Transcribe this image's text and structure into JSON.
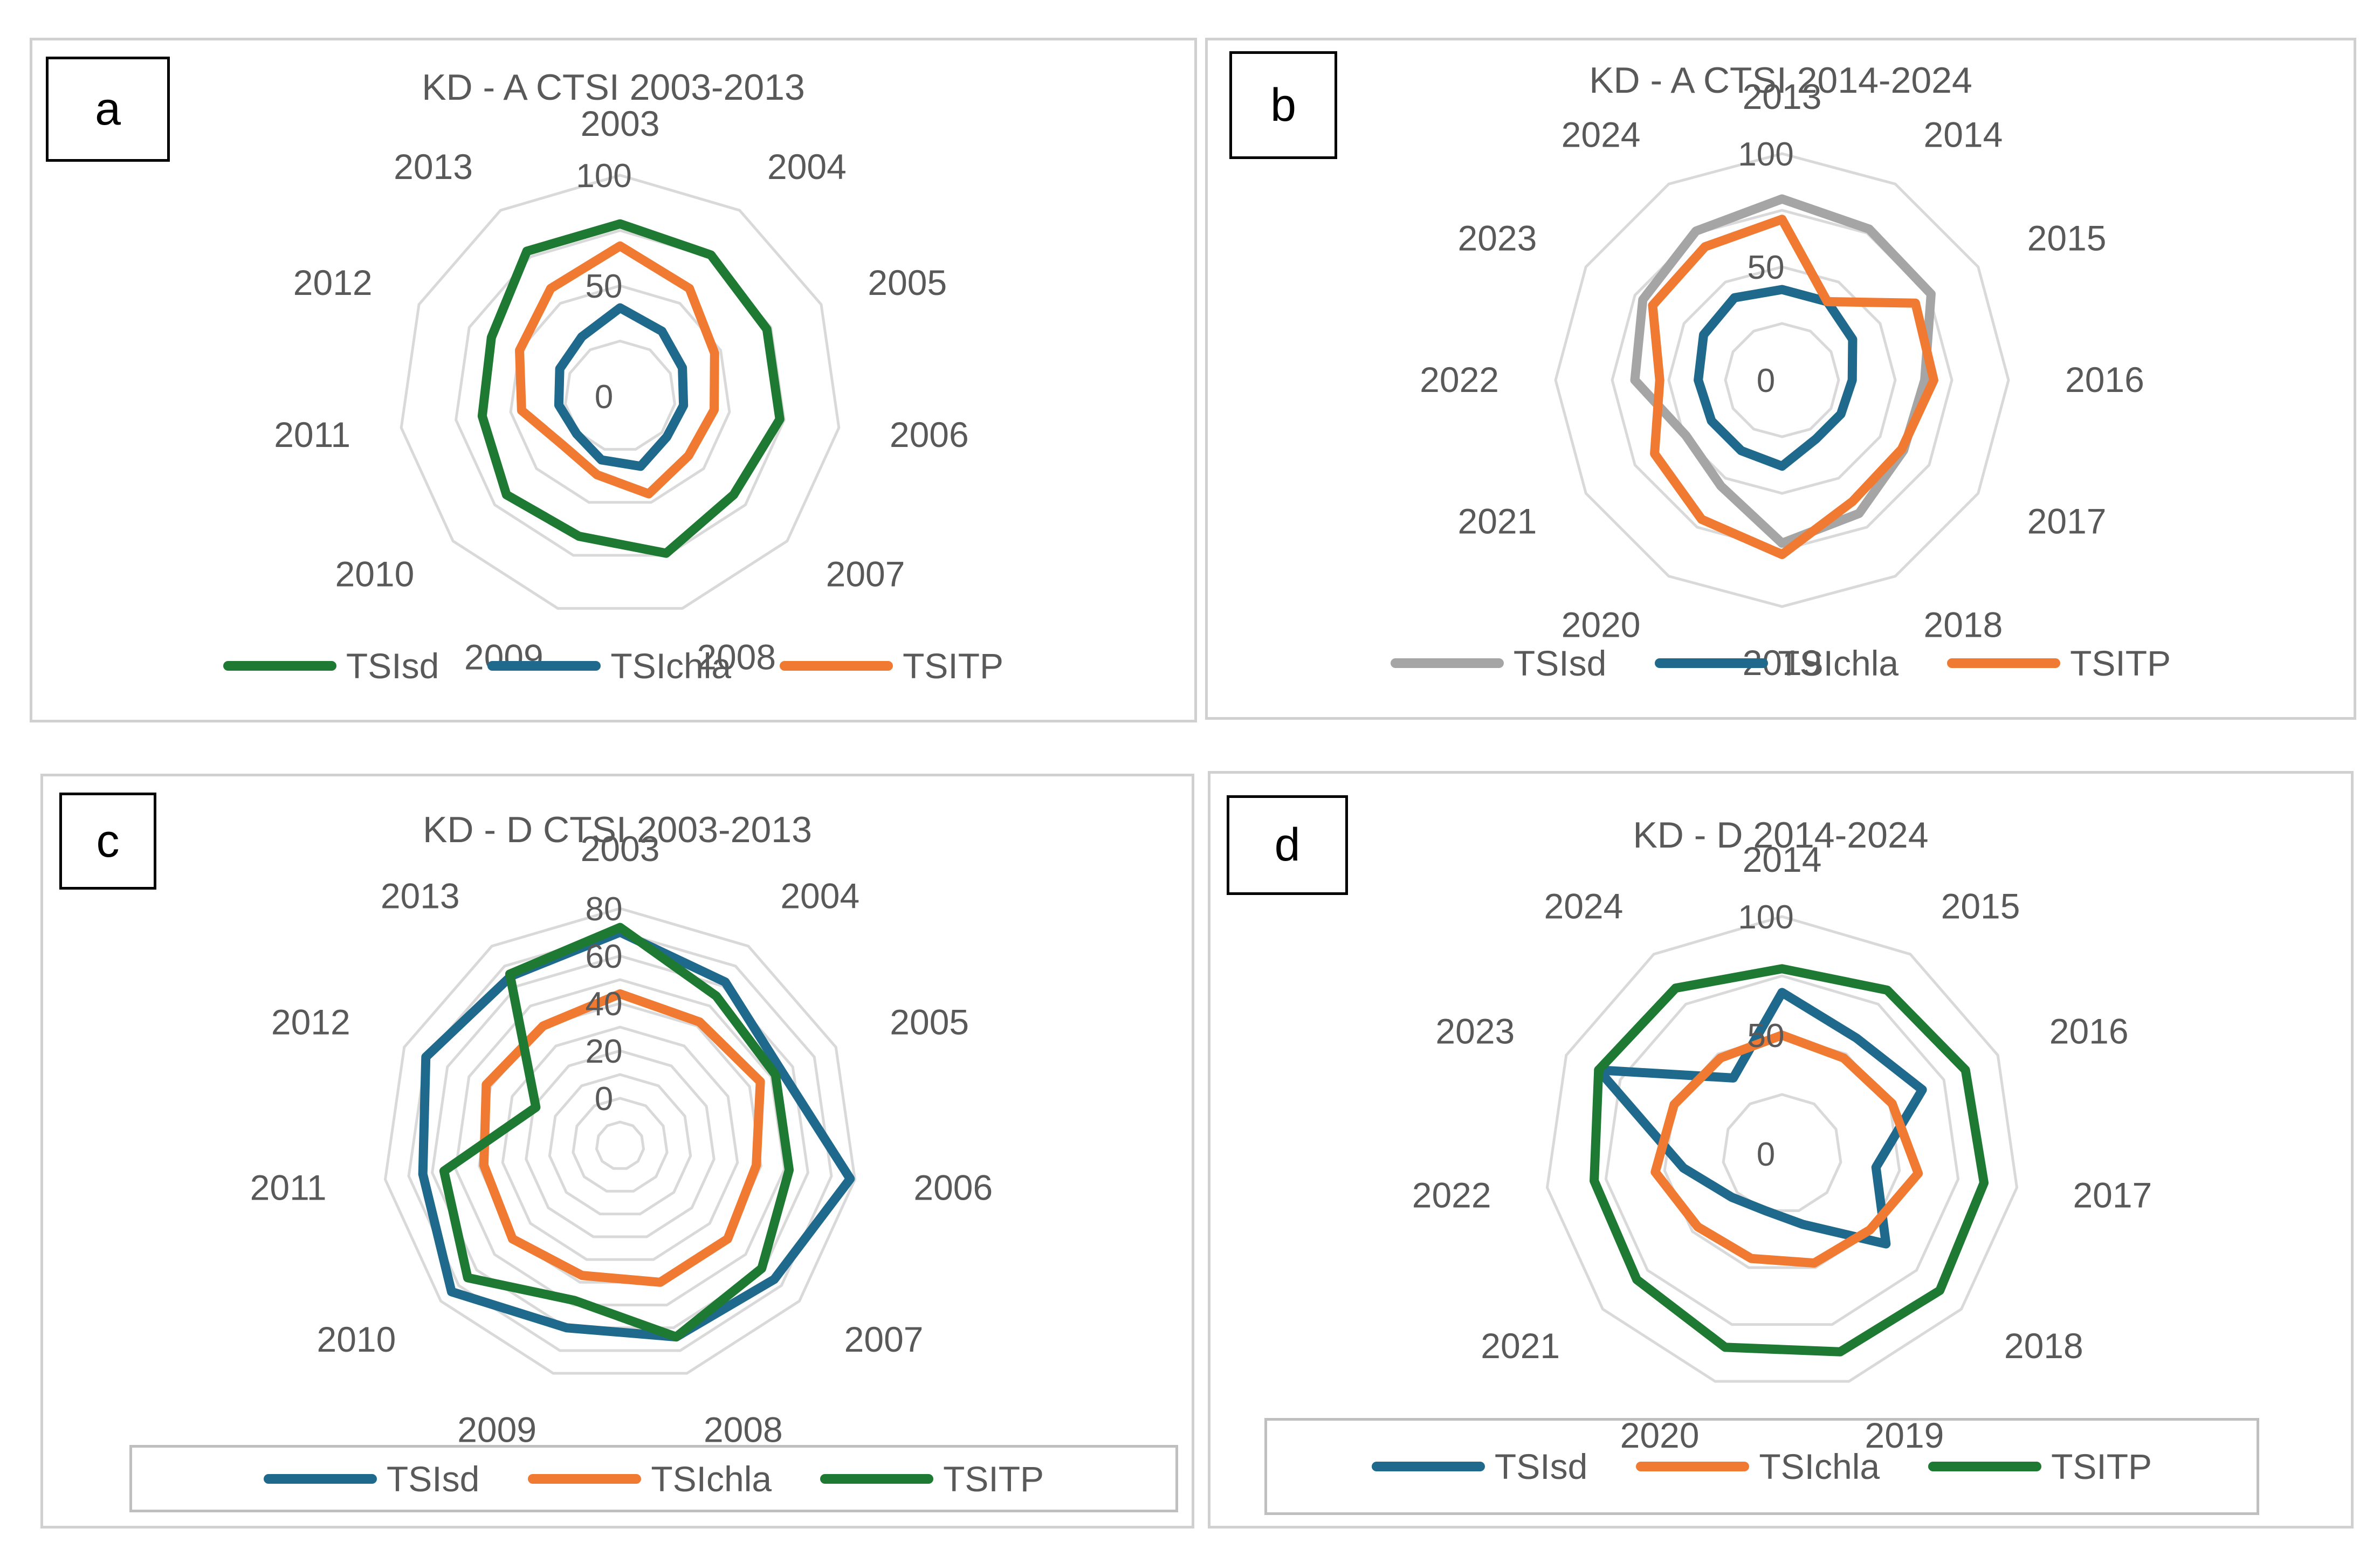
{
  "chart_data": [
    {
      "type": "radar",
      "letter": "a",
      "title": "KD - A CTSI 2003-2013",
      "categories": [
        "2003",
        "2004",
        "2005",
        "2006",
        "2007",
        "2008",
        "2009",
        "2010",
        "2011",
        "2012",
        "2013"
      ],
      "rmax": 100,
      "ticks": [
        "0",
        "50",
        "100"
      ],
      "tick_values": [
        0,
        50,
        100
      ],
      "series": [
        {
          "name": "TSIsd",
          "color": "#1e7a32",
          "values": [
            78,
            76,
            73,
            73,
            68,
            74,
            66,
            68,
            63,
            64,
            78
          ]
        },
        {
          "name": "TSIchla",
          "color": "#1f6a8c",
          "values": [
            40,
            35,
            31,
            29,
            28,
            33,
            30,
            26,
            28,
            30,
            32
          ]
        },
        {
          "name": "TSITP",
          "color": "#f07a32",
          "values": [
            68,
            58,
            47,
            43,
            41,
            46,
            37,
            34,
            45,
            50,
            58
          ]
        }
      ]
    },
    {
      "type": "radar",
      "letter": "b",
      "title": "KD - A CTSI 2014-2024",
      "categories": [
        "2013",
        "2014",
        "2015",
        "2016",
        "2017",
        "2018",
        "2019",
        "2020",
        "2021",
        "2022",
        "2023",
        "2024"
      ],
      "rmax": 100,
      "ticks": [
        "0",
        "50",
        "100"
      ],
      "tick_values": [
        0,
        50,
        100
      ],
      "series": [
        {
          "name": "TSIsd",
          "color": "#a5a5a5",
          "values": [
            80,
            77,
            76,
            63,
            62,
            68,
            72,
            54,
            49,
            65,
            71,
            76
          ]
        },
        {
          "name": "TSIchla",
          "color": "#1f6a8c",
          "values": [
            40,
            40,
            36,
            31,
            30,
            30,
            38,
            36,
            36,
            37,
            40,
            42
          ]
        },
        {
          "name": "TSITP",
          "color": "#f07a32",
          "values": [
            71,
            40,
            68,
            67,
            61,
            62,
            77,
            71,
            65,
            54,
            66,
            68
          ]
        }
      ]
    },
    {
      "type": "radar",
      "letter": "c",
      "title": "KD - D CTSI 2003-2013",
      "categories": [
        "2003",
        "2004",
        "2005",
        "2006",
        "2007",
        "2008",
        "2009",
        "2010",
        "2011",
        "2012",
        "2013"
      ],
      "rmin": -20,
      "rmax": 80,
      "ticks": [
        "0",
        "20",
        "40",
        "60",
        "80"
      ],
      "tick_values": [
        0,
        20,
        40,
        60,
        80
      ],
      "series": [
        {
          "name": "TSIsd",
          "color": "#1f6a8c",
          "values": [
            70,
            62,
            55,
            78,
            66,
            64,
            60,
            74,
            64,
            70,
            65
          ]
        },
        {
          "name": "TSIchla",
          "color": "#f07a32",
          "values": [
            44,
            42,
            45,
            38,
            40,
            40,
            37,
            40,
            38,
            42,
            40
          ]
        },
        {
          "name": "TSITP",
          "color": "#1e7a32",
          "values": [
            72,
            55,
            52,
            52,
            59,
            64,
            48,
            65,
            55,
            19,
            66
          ]
        }
      ]
    },
    {
      "type": "radar",
      "letter": "d",
      "title": "KD - D 2014-2024",
      "categories": [
        "2014",
        "2015",
        "2016",
        "2017",
        "2018",
        "2019",
        "2020",
        "2021",
        "2022",
        "2023",
        "2024"
      ],
      "rmax": 100,
      "ticks": [
        "0",
        "50",
        "100"
      ],
      "tick_values": [
        0,
        50,
        100
      ],
      "series": [
        {
          "name": "TSIsd",
          "color": "#1f6a8c",
          "values": [
            68,
            58,
            65,
            40,
            58,
            31,
            25,
            28,
            42,
            85,
            38
          ]
        },
        {
          "name": "TSIchla",
          "color": "#f07a32",
          "values": [
            50,
            48,
            51,
            58,
            49,
            48,
            46,
            47,
            54,
            50,
            48
          ]
        },
        {
          "name": "TSITP",
          "color": "#1e7a32",
          "values": [
            78,
            82,
            85,
            86,
            88,
            87,
            85,
            81,
            80,
            85,
            83
          ]
        }
      ]
    }
  ]
}
